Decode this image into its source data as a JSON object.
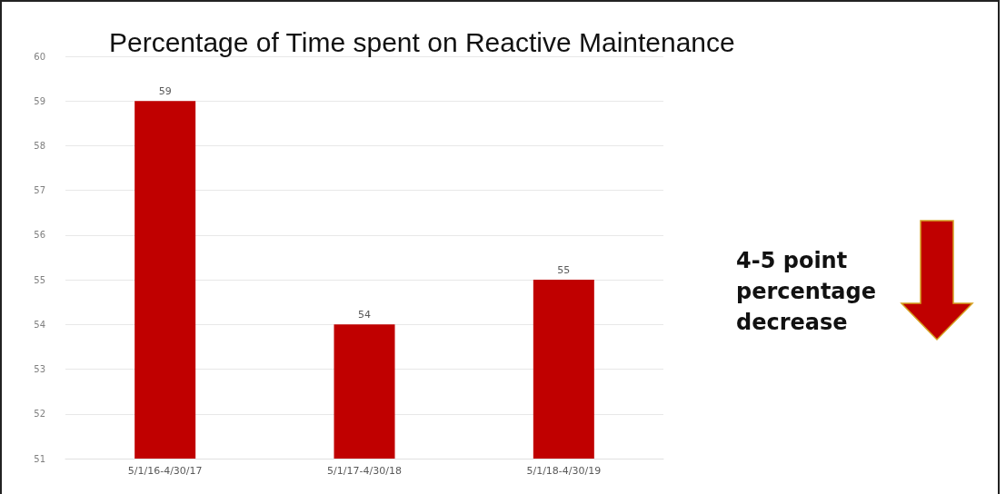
{
  "chart_data": {
    "type": "bar",
    "title": "Percentage of Time spent on Reactive Maintenance",
    "categories": [
      "5/1/16-4/30/17",
      "5/1/17-4/30/18",
      "5/1/18-4/30/19"
    ],
    "values": [
      59,
      54,
      55
    ],
    "color": "#c00000",
    "ylim": [
      51,
      60
    ],
    "yticks": [
      51,
      52,
      53,
      54,
      55,
      56,
      57,
      58,
      59,
      60
    ],
    "grid": "y",
    "data_labels": true,
    "annotations": [
      "4-5 point\npercentage\ndecrease"
    ]
  }
}
